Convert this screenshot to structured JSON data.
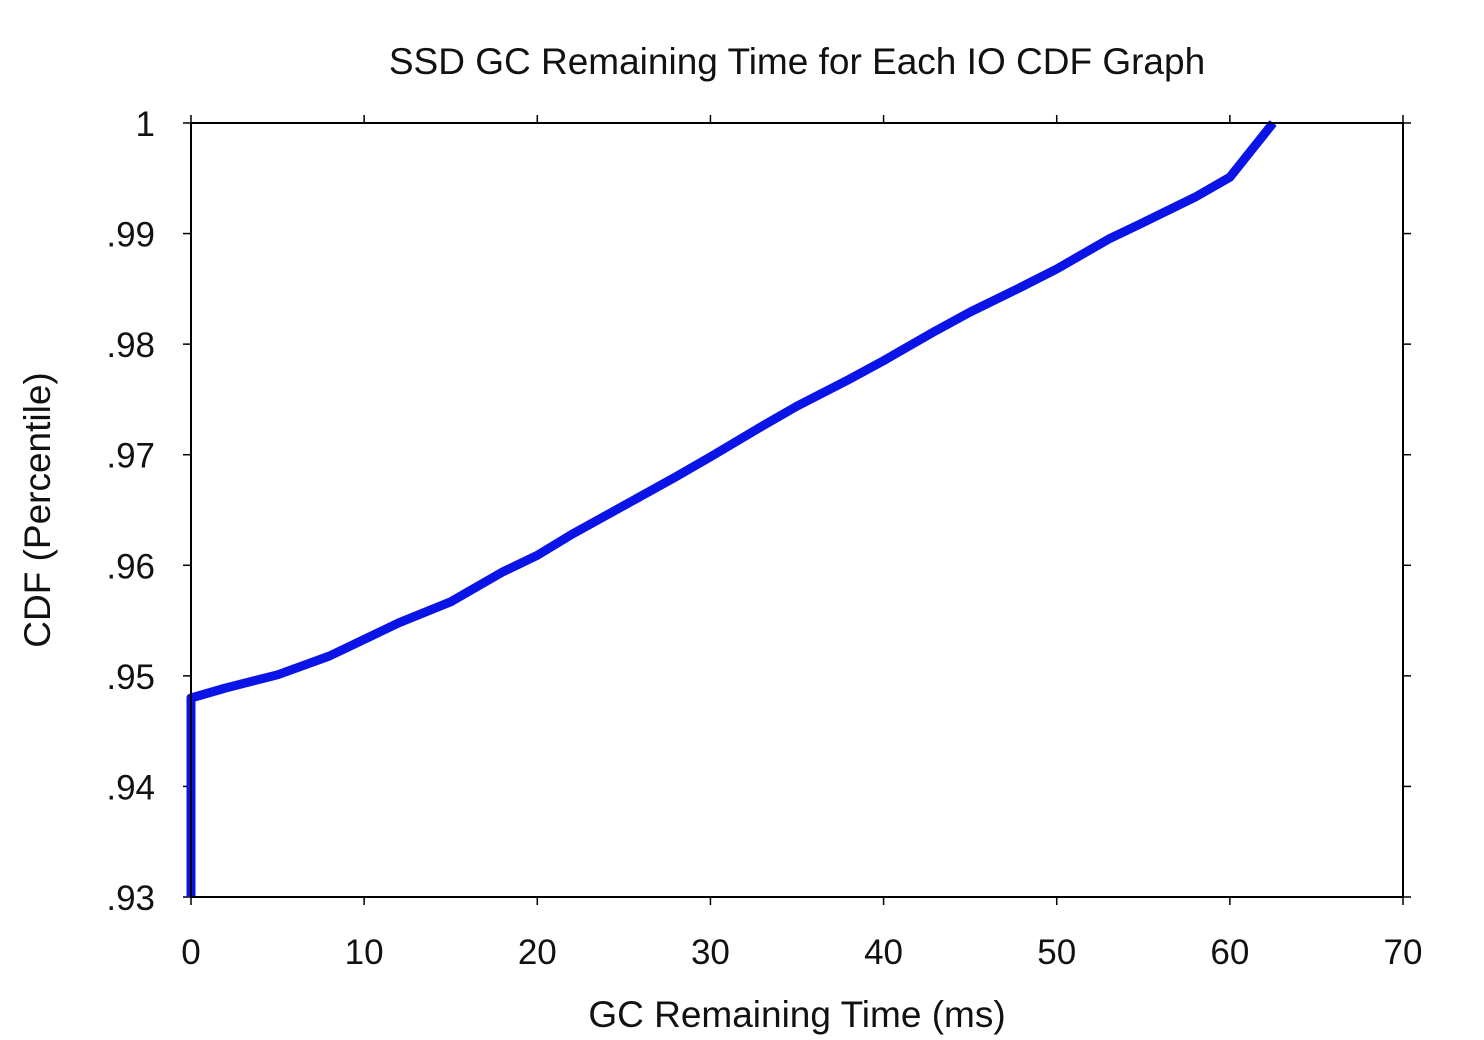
{
  "chart_data": {
    "type": "line",
    "title": "SSD GC Remaining Time for Each IO CDF Graph",
    "xlabel": "GC Remaining Time (ms)",
    "ylabel": "CDF (Percentile)",
    "xlim": [
      0,
      70
    ],
    "ylim": [
      0.93,
      1.0
    ],
    "x_ticks": [
      {
        "value": 0,
        "label": "0"
      },
      {
        "value": 10,
        "label": "10"
      },
      {
        "value": 20,
        "label": "20"
      },
      {
        "value": 30,
        "label": "30"
      },
      {
        "value": 40,
        "label": "40"
      },
      {
        "value": 50,
        "label": "50"
      },
      {
        "value": 60,
        "label": "60"
      },
      {
        "value": 70,
        "label": "70"
      }
    ],
    "y_ticks": [
      {
        "value": 0.93,
        "label": ".93"
      },
      {
        "value": 0.94,
        "label": ".94"
      },
      {
        "value": 0.95,
        "label": ".95"
      },
      {
        "value": 0.96,
        "label": ".96"
      },
      {
        "value": 0.97,
        "label": ".97"
      },
      {
        "value": 0.98,
        "label": ".98"
      },
      {
        "value": 0.99,
        "label": ".99"
      },
      {
        "value": 1.0,
        "label": "1"
      }
    ],
    "grid": false,
    "legend": "none",
    "series": [
      {
        "color": "#0a14e6",
        "x": [
          0,
          0,
          2,
          5,
          8,
          10,
          12,
          15,
          18,
          20,
          22,
          25,
          28,
          30,
          33,
          35,
          38,
          40,
          43,
          45,
          48,
          50,
          53,
          55,
          58,
          60,
          62.5
        ],
        "y": [
          0.93,
          0.948,
          0.9489,
          0.9501,
          0.9518,
          0.9533,
          0.9548,
          0.9567,
          0.9594,
          0.9609,
          0.9628,
          0.9654,
          0.968,
          0.9698,
          0.9726,
          0.9744,
          0.9768,
          0.9785,
          0.9812,
          0.9829,
          0.9852,
          0.9868,
          0.9895,
          0.991,
          0.9933,
          0.9951,
          1.0
        ]
      }
    ]
  }
}
